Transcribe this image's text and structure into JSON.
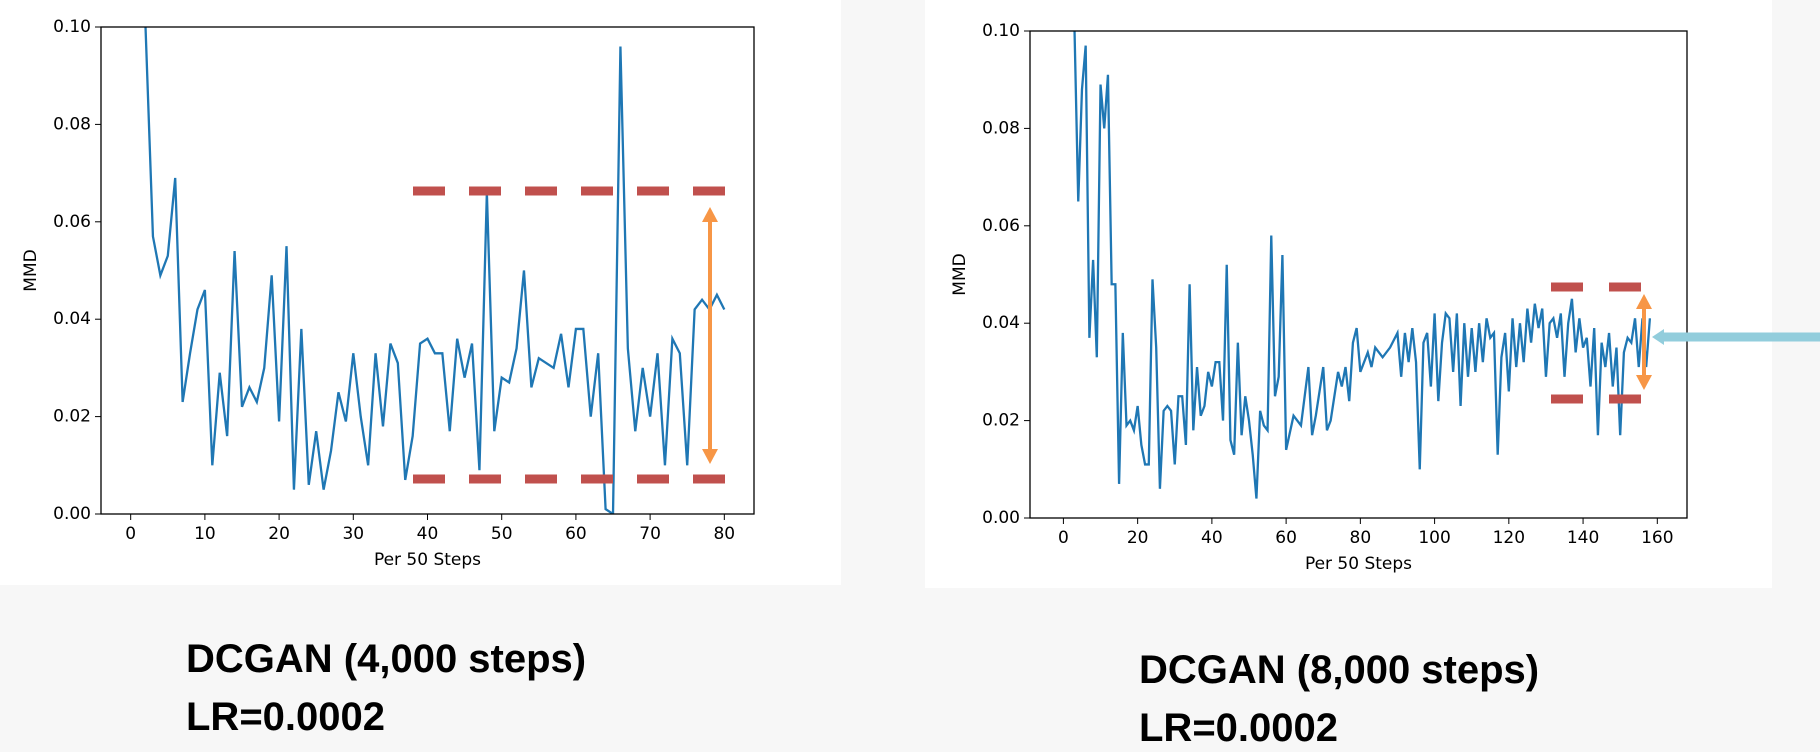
{
  "chart_data": [
    {
      "type": "line",
      "ylabel": "MMD",
      "xlabel": "Per 50 Steps",
      "caption": [
        "DCGAN (4,000 steps)",
        "LR=0.0002"
      ],
      "xlim": [
        -4,
        84
      ],
      "ylim": [
        0,
        0.1
      ],
      "xticks": [
        0,
        10,
        20,
        30,
        40,
        50,
        60,
        70,
        80
      ],
      "yticks": [
        {
          "value": 0,
          "label": "0.00"
        },
        {
          "value": 0.02,
          "label": "0.02"
        },
        {
          "value": 0.04,
          "label": "0.04"
        },
        {
          "value": 0.06,
          "label": "0.06"
        },
        {
          "value": 0.08,
          "label": "0.08"
        },
        {
          "value": 0.1,
          "label": "0.10"
        }
      ],
      "color": "#1f77b4",
      "x": [
        2,
        3,
        4,
        5,
        6,
        7,
        8,
        9,
        10,
        11,
        12,
        13,
        14,
        15,
        16,
        17,
        18,
        19,
        20,
        21,
        22,
        23,
        24,
        25,
        26,
        27,
        28,
        29,
        30,
        31,
        32,
        33,
        34,
        35,
        36,
        37,
        38,
        39,
        40,
        41,
        42,
        43,
        44,
        45,
        46,
        47,
        48,
        49,
        50,
        51,
        52,
        53,
        54,
        55,
        56,
        57,
        58,
        59,
        60,
        61,
        62,
        63,
        64,
        65,
        66,
        67,
        68,
        69,
        70,
        71,
        72,
        73,
        74,
        75,
        76,
        77,
        78,
        79,
        80
      ],
      "values": [
        0.1,
        0.057,
        0.049,
        0.053,
        0.069,
        0.023,
        0.033,
        0.042,
        0.046,
        0.01,
        0.029,
        0.016,
        0.054,
        0.022,
        0.026,
        0.023,
        0.03,
        0.049,
        0.019,
        0.055,
        0.005,
        0.038,
        0.006,
        0.017,
        0.005,
        0.013,
        0.025,
        0.019,
        0.033,
        0.02,
        0.01,
        0.033,
        0.018,
        0.035,
        0.031,
        0.007,
        0.016,
        0.035,
        0.036,
        0.033,
        0.033,
        0.017,
        0.036,
        0.028,
        0.035,
        0.009,
        0.066,
        0.017,
        0.028,
        0.027,
        0.034,
        0.05,
        0.026,
        0.032,
        0.031,
        0.03,
        0.037,
        0.026,
        0.038,
        0.038,
        0.02,
        0.033,
        0.001,
        0,
        0.096,
        0.034,
        0.017,
        0.03,
        0.02,
        0.033,
        0.01,
        0.036,
        0.033,
        0.01,
        0.042,
        0.044,
        0.042,
        0.045,
        0.042
      ]
    },
    {
      "type": "line",
      "ylabel": "MMD",
      "xlabel": "Per 50 Steps",
      "caption": [
        "DCGAN (8,000 steps)",
        "LR=0.0002"
      ],
      "xlim": [
        -9,
        168
      ],
      "ylim": [
        0,
        0.1
      ],
      "xticks": [
        0,
        20,
        40,
        60,
        80,
        100,
        120,
        140,
        160
      ],
      "yticks": [
        {
          "value": 0,
          "label": "0.00"
        },
        {
          "value": 0.02,
          "label": "0.02"
        },
        {
          "value": 0.04,
          "label": "0.04"
        },
        {
          "value": 0.06,
          "label": "0.06"
        },
        {
          "value": 0.08,
          "label": "0.08"
        },
        {
          "value": 0.1,
          "label": "0.10"
        }
      ],
      "color": "#1f77b4",
      "x": [
        3,
        4,
        5,
        6,
        7,
        8,
        9,
        10,
        11,
        12,
        13,
        14,
        15,
        16,
        17,
        18,
        19,
        20,
        21,
        22,
        23,
        24,
        25,
        26,
        27,
        28,
        29,
        30,
        31,
        32,
        33,
        34,
        35,
        36,
        37,
        38,
        39,
        40,
        41,
        42,
        43,
        44,
        45,
        46,
        47,
        48,
        49,
        50,
        51,
        52,
        53,
        54,
        55,
        56,
        57,
        58,
        59,
        60,
        62,
        64,
        66,
        67,
        68,
        70,
        71,
        72,
        74,
        75,
        76,
        77,
        78,
        79,
        80,
        82,
        83,
        84,
        86,
        88,
        90,
        91,
        92,
        93,
        94,
        95,
        96,
        97,
        98,
        99,
        100,
        101,
        102,
        103,
        104,
        105,
        106,
        107,
        108,
        109,
        110,
        111,
        112,
        113,
        114,
        115,
        116,
        117,
        118,
        119,
        120,
        121,
        122,
        123,
        124,
        125,
        126,
        127,
        128,
        129,
        130,
        131,
        132,
        133,
        134,
        135,
        136,
        137,
        138,
        139,
        140,
        141,
        142,
        143,
        144,
        145,
        146,
        147,
        148,
        149,
        150,
        151,
        152,
        153,
        154,
        155,
        156,
        157,
        158
      ],
      "values": [
        0.1,
        0.065,
        0.088,
        0.097,
        0.037,
        0.053,
        0.033,
        0.089,
        0.08,
        0.091,
        0.048,
        0.048,
        0.007,
        0.038,
        0.019,
        0.02,
        0.018,
        0.023,
        0.015,
        0.011,
        0.011,
        0.049,
        0.035,
        0.006,
        0.022,
        0.023,
        0.022,
        0.011,
        0.025,
        0.025,
        0.015,
        0.048,
        0.018,
        0.031,
        0.021,
        0.023,
        0.03,
        0.027,
        0.032,
        0.032,
        0.02,
        0.052,
        0.016,
        0.013,
        0.036,
        0.017,
        0.025,
        0.02,
        0.013,
        0.004,
        0.022,
        0.019,
        0.018,
        0.058,
        0.025,
        0.029,
        0.054,
        0.014,
        0.021,
        0.019,
        0.031,
        0.017,
        0.021,
        0.031,
        0.018,
        0.02,
        0.03,
        0.027,
        0.031,
        0.024,
        0.036,
        0.039,
        0.03,
        0.034,
        0.031,
        0.035,
        0.033,
        0.035,
        0.038,
        0.029,
        0.038,
        0.032,
        0.039,
        0.032,
        0.01,
        0.036,
        0.038,
        0.027,
        0.042,
        0.024,
        0.036,
        0.042,
        0.041,
        0.03,
        0.042,
        0.023,
        0.04,
        0.029,
        0.039,
        0.03,
        0.04,
        0.032,
        0.041,
        0.037,
        0.038,
        0.013,
        0.033,
        0.038,
        0.026,
        0.041,
        0.031,
        0.04,
        0.032,
        0.043,
        0.036,
        0.044,
        0.039,
        0.043,
        0.029,
        0.04,
        0.041,
        0.037,
        0.042,
        0.029,
        0.04,
        0.045,
        0.034,
        0.041,
        0.035,
        0.037,
        0.027,
        0.039,
        0.017,
        0.036,
        0.031,
        0.038,
        0.027,
        0.035,
        0.017,
        0.034,
        0.037,
        0.036,
        0.041,
        0.031,
        0.041,
        0.031,
        0.041
      ]
    }
  ]
}
